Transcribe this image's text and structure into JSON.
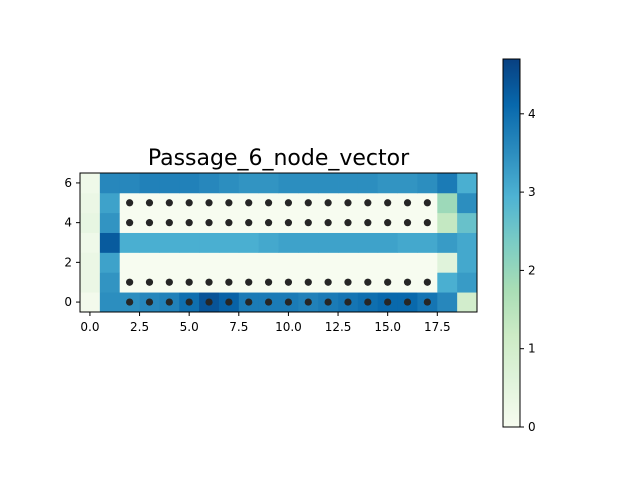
{
  "chart_data": {
    "type": "heatmap",
    "title": "Passage_6_node_vector",
    "xlabel": "",
    "ylabel": "",
    "xlim": [
      -0.5,
      19.5
    ],
    "ylim": [
      -0.5,
      6.5
    ],
    "x_ticks": [
      0.0,
      2.5,
      5.0,
      7.5,
      10.0,
      12.5,
      15.0,
      17.5
    ],
    "x_tick_labels": [
      "0.0",
      "2.5",
      "5.0",
      "7.5",
      "10.0",
      "12.5",
      "15.0",
      "17.5"
    ],
    "y_ticks": [
      0,
      2,
      4,
      6
    ],
    "y_tick_labels": [
      "0",
      "2",
      "4",
      "6"
    ],
    "colormap": "GnBu",
    "colorbar": {
      "min": 0,
      "max": 4.7,
      "ticks": [
        0,
        1,
        2,
        3,
        4
      ],
      "tick_labels": [
        "0",
        "1",
        "2",
        "3",
        "4"
      ]
    },
    "grid": false,
    "rows_bottom_to_top": [
      [
        0.1,
        3.5,
        3.5,
        3.6,
        3.7,
        4.0,
        4.4,
        4.2,
        3.8,
        3.8,
        3.8,
        3.7,
        3.8,
        3.9,
        4.0,
        4.1,
        4.1,
        3.9,
        3.6,
        1.0
      ],
      [
        0.3,
        3.4,
        0,
        0,
        0,
        0,
        0,
        0,
        0,
        0,
        0,
        0,
        0,
        0,
        0,
        0,
        0,
        0,
        3.0,
        3.3
      ],
      [
        0.3,
        3.2,
        0,
        0,
        0,
        0,
        0,
        0,
        0,
        0,
        0,
        0,
        0,
        0,
        0,
        0,
        0,
        0,
        0.6,
        3.1
      ],
      [
        0.2,
        4.3,
        3.0,
        3.0,
        3.0,
        3.0,
        3.0,
        3.0,
        3.0,
        3.1,
        3.2,
        3.2,
        3.2,
        3.2,
        3.2,
        3.2,
        3.1,
        3.1,
        3.3,
        3.1
      ],
      [
        0.4,
        3.4,
        0,
        0,
        0,
        0,
        0,
        0,
        0,
        0,
        0,
        0,
        0,
        0,
        0,
        0,
        0,
        0,
        1.3,
        2.6
      ],
      [
        0.3,
        3.2,
        0,
        0,
        0,
        0,
        0,
        0,
        0,
        0,
        0,
        0,
        0,
        0,
        0,
        0,
        0,
        0,
        1.9,
        3.5
      ],
      [
        0.2,
        3.6,
        3.6,
        3.7,
        3.7,
        3.7,
        3.6,
        3.5,
        3.4,
        3.4,
        3.5,
        3.5,
        3.5,
        3.5,
        3.5,
        3.4,
        3.4,
        3.5,
        3.8,
        3.0
      ]
    ],
    "node_markers": {
      "x": [
        2,
        3,
        4,
        5,
        6,
        7,
        8,
        9,
        10,
        11,
        12,
        13,
        14,
        15,
        16,
        17
      ],
      "y": [
        0,
        1,
        4,
        5
      ],
      "color": "#262626"
    }
  }
}
